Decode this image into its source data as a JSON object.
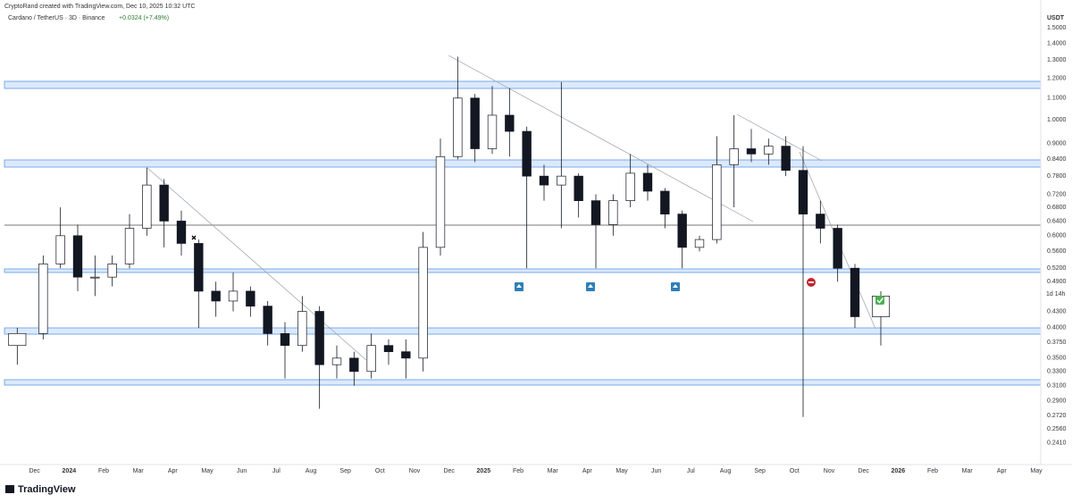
{
  "header": {
    "credit": "CryptoRand created with TradingView.com, Dec 10, 2025 10:32 UTC",
    "logo": "TradingView"
  },
  "chart_data": {
    "type": "candlestick",
    "title": "Cardano / TetherUS · 3D · Binance",
    "subtitle": "+0.0324 (+7.49%)",
    "y_axis_label": "USDT",
    "countdown": "1d 14h",
    "log_scale": true,
    "grid": false,
    "up_color": "#ffffff",
    "down_color": "#131722",
    "x": [
      "2023-11",
      "2023-12",
      "2023-12",
      "2024-01",
      "2024-01",
      "2024-02",
      "2024-02",
      "2024-03",
      "2024-03",
      "2024-04",
      "2024-04",
      "2024-05",
      "2024-05",
      "2024-06",
      "2024-06",
      "2024-07",
      "2024-07",
      "2024-08",
      "2024-08",
      "2024-09",
      "2024-09",
      "2024-10",
      "2024-10",
      "2024-11",
      "2024-11",
      "2024-12",
      "2024-12",
      "2025-01",
      "2025-01",
      "2025-02",
      "2025-02",
      "2025-03",
      "2025-03",
      "2025-04",
      "2025-04",
      "2025-05",
      "2025-05",
      "2025-06",
      "2025-06",
      "2025-07",
      "2025-07",
      "2025-08",
      "2025-08",
      "2025-09",
      "2025-09",
      "2025-10",
      "2025-10",
      "2025-11",
      "2025-11",
      "2025-12"
    ],
    "open": [
      0.37,
      0.39,
      0.53,
      0.6,
      0.5,
      0.5,
      0.53,
      0.62,
      0.75,
      0.64,
      0.58,
      0.47,
      0.45,
      0.47,
      0.44,
      0.39,
      0.37,
      0.43,
      0.34,
      0.35,
      0.33,
      0.37,
      0.36,
      0.35,
      0.57,
      0.85,
      1.1,
      0.88,
      1.02,
      0.95,
      0.78,
      0.75,
      0.78,
      0.7,
      0.63,
      0.7,
      0.79,
      0.73,
      0.66,
      0.57,
      0.59,
      0.82,
      0.88,
      0.86,
      0.89,
      0.8,
      0.66,
      0.62,
      0.52,
      0.42
    ],
    "high": [
      0.4,
      0.55,
      0.68,
      0.63,
      0.55,
      0.55,
      0.66,
      0.81,
      0.77,
      0.67,
      0.59,
      0.49,
      0.51,
      0.48,
      0.45,
      0.41,
      0.46,
      0.44,
      0.37,
      0.36,
      0.39,
      0.38,
      0.38,
      0.61,
      0.92,
      1.32,
      1.12,
      1.16,
      1.15,
      0.97,
      0.82,
      1.18,
      0.79,
      0.72,
      0.72,
      0.86,
      0.82,
      0.74,
      0.67,
      0.6,
      0.93,
      1.02,
      0.96,
      0.92,
      0.93,
      0.89,
      0.7,
      0.63,
      0.53,
      0.47
    ],
    "low": [
      0.34,
      0.38,
      0.52,
      0.47,
      0.46,
      0.48,
      0.52,
      0.6,
      0.57,
      0.55,
      0.4,
      0.42,
      0.43,
      0.42,
      0.37,
      0.32,
      0.36,
      0.28,
      0.32,
      0.31,
      0.32,
      0.34,
      0.32,
      0.33,
      0.55,
      0.84,
      0.83,
      0.86,
      0.85,
      0.52,
      0.7,
      0.62,
      0.65,
      0.52,
      0.6,
      0.68,
      0.7,
      0.62,
      0.52,
      0.56,
      0.58,
      0.68,
      0.83,
      0.82,
      0.78,
      0.27,
      0.58,
      0.49,
      0.4,
      0.37
    ],
    "close": [
      0.39,
      0.53,
      0.6,
      0.5,
      0.5,
      0.53,
      0.62,
      0.75,
      0.64,
      0.58,
      0.47,
      0.45,
      0.47,
      0.44,
      0.39,
      0.37,
      0.43,
      0.34,
      0.35,
      0.33,
      0.37,
      0.36,
      0.35,
      0.57,
      0.85,
      1.1,
      0.88,
      1.02,
      0.95,
      0.78,
      0.75,
      0.78,
      0.7,
      0.63,
      0.7,
      0.79,
      0.73,
      0.66,
      0.57,
      0.59,
      0.82,
      0.88,
      0.86,
      0.89,
      0.8,
      0.66,
      0.62,
      0.52,
      0.42,
      0.46
    ],
    "ylim": [
      0.219,
      1.616
    ],
    "yticks": [
      {
        "value": 1.5,
        "label": "1.5000"
      },
      {
        "value": 1.4,
        "label": "1.4000"
      },
      {
        "value": 1.3,
        "label": "1.3000"
      },
      {
        "value": 1.2,
        "label": "1.2000"
      },
      {
        "value": 1.1,
        "label": "1.1000"
      },
      {
        "value": 1.0,
        "label": "1.0000"
      },
      {
        "value": 0.9,
        "label": "0.9000"
      },
      {
        "value": 0.84,
        "label": "0.8400"
      },
      {
        "value": 0.78,
        "label": "0.7800"
      },
      {
        "value": 0.72,
        "label": "0.7200"
      },
      {
        "value": 0.68,
        "label": "0.6800"
      },
      {
        "value": 0.64,
        "label": "0.6400"
      },
      {
        "value": 0.6,
        "label": "0.6000"
      },
      {
        "value": 0.56,
        "label": "0.5600"
      },
      {
        "value": 0.52,
        "label": "0.5200"
      },
      {
        "value": 0.49,
        "label": "0.4900"
      },
      {
        "value": 0.43,
        "label": "0.4300"
      },
      {
        "value": 0.4,
        "label": "0.4000"
      },
      {
        "value": 0.375,
        "label": "0.3750"
      },
      {
        "value": 0.35,
        "label": "0.3500"
      },
      {
        "value": 0.33,
        "label": "0.3300"
      },
      {
        "value": 0.31,
        "label": "0.3100"
      },
      {
        "value": 0.29,
        "label": "0.2900"
      },
      {
        "value": 0.272,
        "label": "0.2720"
      },
      {
        "value": 0.256,
        "label": "0.2560"
      },
      {
        "value": 0.241,
        "label": "0.2410"
      }
    ],
    "xlim": [
      "2023-11",
      "2026-05"
    ],
    "xticks": [
      {
        "value": "2023-12",
        "label": "Dec"
      },
      {
        "value": "2024-01",
        "label": "2024"
      },
      {
        "value": "2024-02",
        "label": "Feb"
      },
      {
        "value": "2024-03",
        "label": "Mar"
      },
      {
        "value": "2024-04",
        "label": "Apr"
      },
      {
        "value": "2024-05",
        "label": "May"
      },
      {
        "value": "2024-06",
        "label": "Jun"
      },
      {
        "value": "2024-07",
        "label": "Jul"
      },
      {
        "value": "2024-08",
        "label": "Aug"
      },
      {
        "value": "2024-09",
        "label": "Sep"
      },
      {
        "value": "2024-10",
        "label": "Oct"
      },
      {
        "value": "2024-11",
        "label": "Nov"
      },
      {
        "value": "2024-12",
        "label": "Dec"
      },
      {
        "value": "2025-01",
        "label": "2025"
      },
      {
        "value": "2025-02",
        "label": "Feb"
      },
      {
        "value": "2025-03",
        "label": "Mar"
      },
      {
        "value": "2025-04",
        "label": "Apr"
      },
      {
        "value": "2025-05",
        "label": "May"
      },
      {
        "value": "2025-06",
        "label": "Jun"
      },
      {
        "value": "2025-07",
        "label": "Jul"
      },
      {
        "value": "2025-08",
        "label": "Aug"
      },
      {
        "value": "2025-09",
        "label": "Sep"
      },
      {
        "value": "2025-10",
        "label": "Oct"
      },
      {
        "value": "2025-11",
        "label": "Nov"
      },
      {
        "value": "2025-12",
        "label": "Dec"
      },
      {
        "value": "2026-01",
        "label": "2026"
      },
      {
        "value": "2026-02",
        "label": "Feb"
      },
      {
        "value": "2026-03",
        "label": "Mar"
      },
      {
        "value": "2026-04",
        "label": "Apr"
      },
      {
        "value": "2026-05",
        "label": "May"
      }
    ]
  }
}
